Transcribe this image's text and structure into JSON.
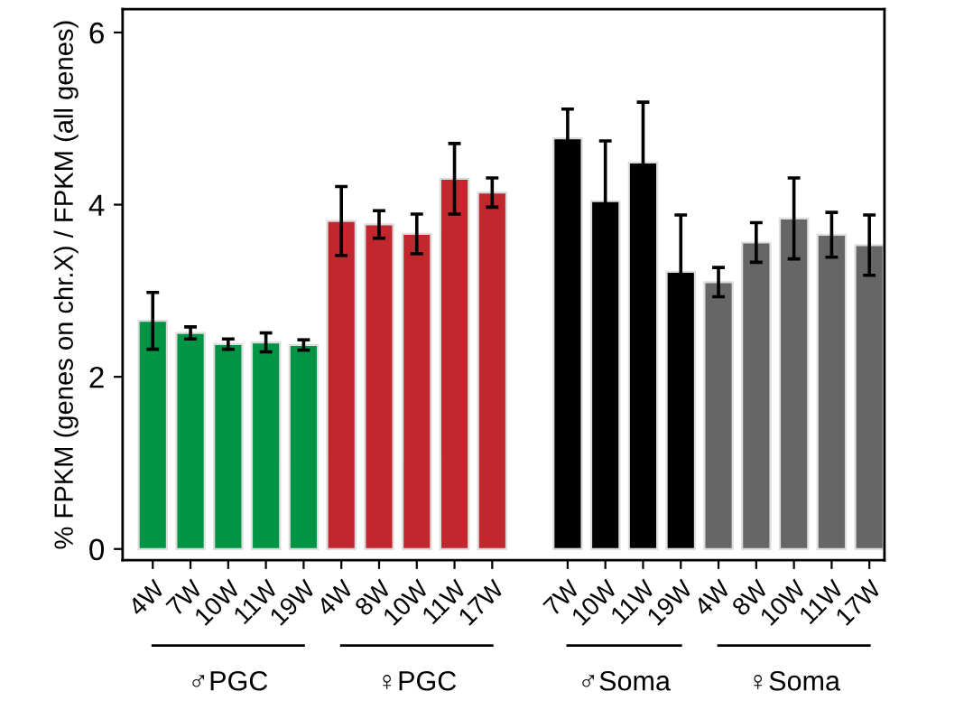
{
  "chart_data": {
    "type": "bar",
    "ylabel": "% FPKM (genes on chr.X) / FPKM (all genes)",
    "categories": [
      "4W",
      "7W",
      "10W",
      "11W",
      "19W",
      "4W",
      "8W",
      "10W",
      "11W",
      "17W",
      null,
      "7W",
      "10W",
      "11W",
      "19W",
      "4W",
      "8W",
      "10W",
      "11W",
      "17W"
    ],
    "values": [
      2.65,
      2.51,
      2.38,
      2.4,
      2.37,
      3.81,
      3.77,
      3.66,
      4.3,
      4.14,
      null,
      4.77,
      4.04,
      4.49,
      3.22,
      3.1,
      3.56,
      3.84,
      3.65,
      3.53
    ],
    "errors": [
      0.33,
      0.07,
      0.06,
      0.11,
      0.06,
      0.4,
      0.16,
      0.23,
      0.41,
      0.17,
      null,
      0.34,
      0.7,
      0.7,
      0.66,
      0.17,
      0.23,
      0.47,
      0.26,
      0.35
    ],
    "colors": [
      "#009444",
      "#009444",
      "#009444",
      "#009444",
      "#009444",
      "#c1272d",
      "#c1272d",
      "#c1272d",
      "#c1272d",
      "#c1272d",
      null,
      "#000000",
      "#000000",
      "#000000",
      "#000000",
      "#666666",
      "#666666",
      "#666666",
      "#666666",
      "#666666"
    ],
    "annotations": [
      "♂PGC",
      "♀PGC",
      "♂Soma",
      "♀Soma"
    ],
    "ylim": [
      -0.13,
      6.27
    ],
    "yticks": [
      0,
      2,
      4,
      6
    ],
    "grid": false
  }
}
